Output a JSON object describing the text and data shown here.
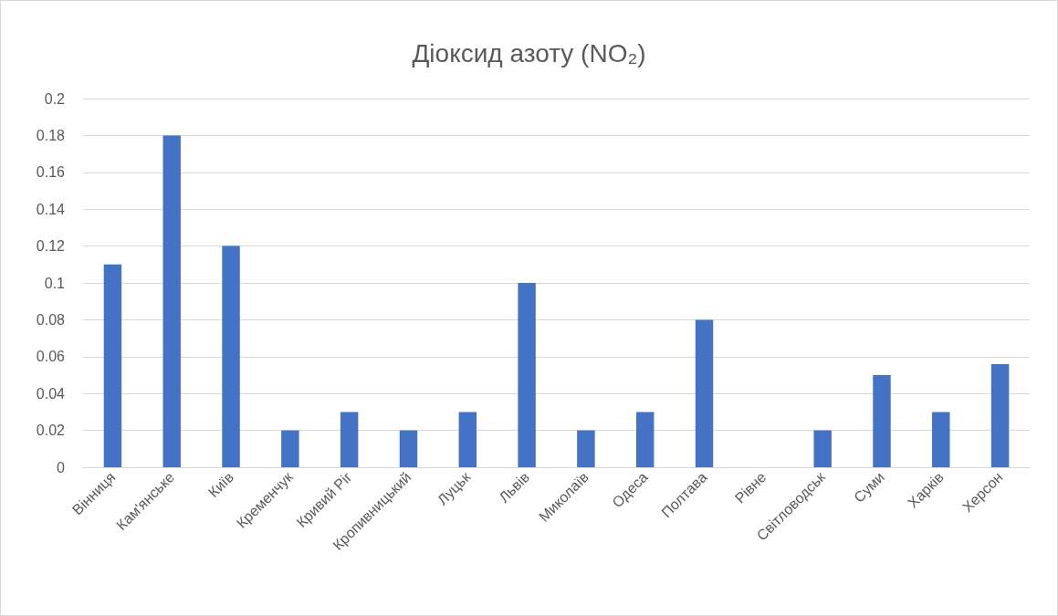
{
  "chart_data": {
    "type": "bar",
    "title": "Діоксид азоту (NO₂)",
    "categories": [
      "Вінниця",
      "Кам'янське",
      "Київ",
      "Кременчук",
      "Кривий Ріг",
      "Кропивницький",
      "Луцьк",
      "Львів",
      "Миколаїв",
      "Одеса",
      "Полтава",
      "Рівне",
      "Світловодськ",
      "Суми",
      "Харків",
      "Херсон"
    ],
    "values": [
      0.11,
      0.18,
      0.12,
      0.02,
      0.03,
      0.02,
      0.03,
      0.1,
      0.02,
      0.03,
      0.08,
      null,
      0.02,
      0.05,
      0.03,
      0.056
    ],
    "color": "#4472c4",
    "ylim": [
      0,
      0.2
    ],
    "yticks": [
      0,
      0.02,
      0.04,
      0.06,
      0.08,
      0.1,
      0.12,
      0.14,
      0.16,
      0.18,
      0.2
    ],
    "grid": "y"
  }
}
